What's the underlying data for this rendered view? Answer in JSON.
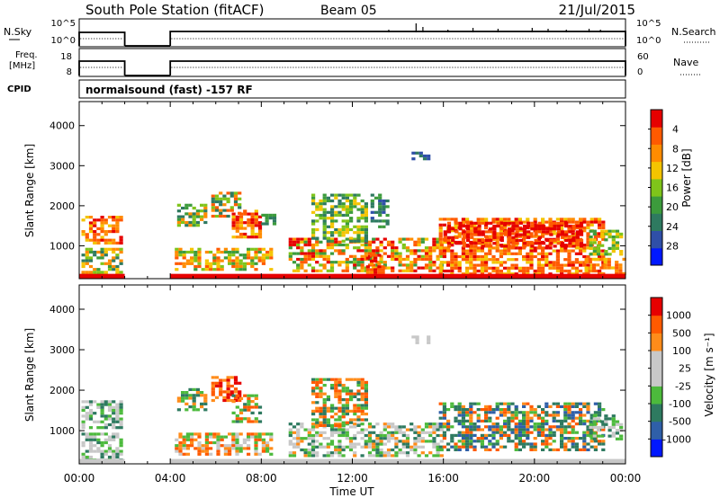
{
  "header": {
    "title": "South Pole Station (fitACF)",
    "beam": "Beam 05",
    "date": "21/Jul/2015"
  },
  "nsky_panel": {
    "left_label": "N.Sky",
    "right_label": "N.Search",
    "left_ticks": [
      "10^5",
      "10^0"
    ],
    "right_ticks": [
      "10^5",
      "10^0"
    ]
  },
  "freq_panel": {
    "left_label_line1": "Freq.",
    "left_label_line2": "[MHz]",
    "left_ticks": [
      "18",
      "8"
    ],
    "right_label": "Nave",
    "right_ticks": [
      "60",
      "0"
    ]
  },
  "cpid_panel": {
    "label": "CPID",
    "text": "normalsound (fast) -157 RF"
  },
  "chart_data": [
    {
      "type": "heatmap",
      "name": "power",
      "ylabel": "Slant Range [km]",
      "yticks": [
        1000,
        2000,
        3000,
        4000
      ],
      "ylim": [
        180,
        4600
      ],
      "xlim": [
        0,
        24
      ],
      "colorbar": {
        "label": "Power [dB]",
        "ticks": [
          "4",
          "8",
          "12",
          "16",
          "20",
          "24",
          "28"
        ],
        "colors": [
          "#0018ff",
          "#2f4fa8",
          "#2e7a60",
          "#3c9b3c",
          "#7fc41a",
          "#f4c400",
          "#ff8c00",
          "#ff5a00",
          "#e60000"
        ]
      }
    },
    {
      "type": "heatmap",
      "name": "velocity",
      "ylabel": "Slant Range [km]",
      "yticks": [
        1000,
        2000,
        3000,
        4000
      ],
      "ylim": [
        180,
        4600
      ],
      "xlim": [
        0,
        24
      ],
      "xticks": [
        "00:00",
        "04:00",
        "08:00",
        "12:00",
        "16:00",
        "20:00",
        "00:00"
      ],
      "xlabel": "Time UT",
      "colorbar": {
        "label": "Velocity [m s⁻¹]",
        "ticks": [
          "1000",
          "500",
          "100",
          "25",
          "-25",
          "-100",
          "-500",
          "-1000"
        ],
        "colors": [
          "#0018ff",
          "#2f5fa8",
          "#2e7a60",
          "#4cba3c",
          "#c8c8c8",
          "#c8c8c8",
          "#ff8c1a",
          "#ff5a00",
          "#e60000"
        ]
      }
    }
  ]
}
